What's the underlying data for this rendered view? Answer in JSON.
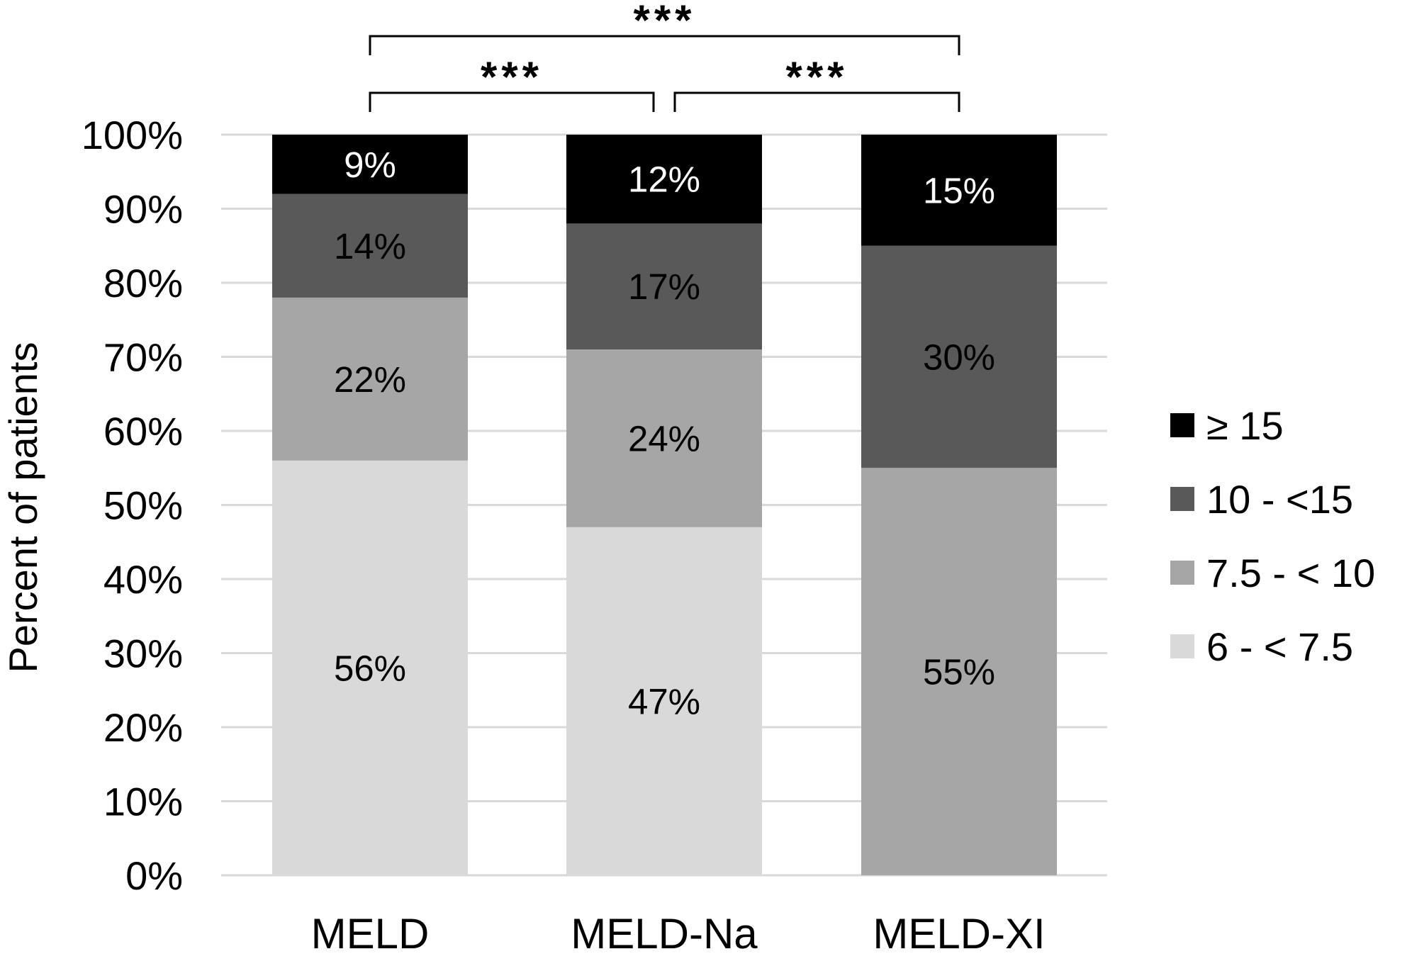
{
  "chart_data": {
    "type": "bar",
    "stacked": true,
    "categories": [
      "MELD",
      "MELD-Na",
      "MELD-XI"
    ],
    "series": [
      {
        "name": "6 - < 7.5",
        "values": [
          56,
          47,
          0
        ],
        "color": "#d9d9d9",
        "label_color": "#000000"
      },
      {
        "name": "7.5 - < 10",
        "values": [
          22,
          24,
          55
        ],
        "color": "#a6a6a6",
        "label_color": "#000000"
      },
      {
        "name": "10 - <15",
        "values": [
          14,
          17,
          30
        ],
        "color": "#595959",
        "label_color": "#000000"
      },
      {
        "name": "≥ 15",
        "values": [
          9,
          12,
          15
        ],
        "color": "#000000",
        "label_color": "#ffffff"
      }
    ],
    "data_labels": [
      [
        "56%",
        "47%",
        ""
      ],
      [
        "22%",
        "24%",
        "55%"
      ],
      [
        "14%",
        "17%",
        "30%"
      ],
      [
        "9%",
        "12%",
        "15%"
      ]
    ],
    "ylabel": "Percent of patients",
    "xlabel": "",
    "ylim": [
      0,
      100
    ],
    "yticks": [
      "0%",
      "10%",
      "20%",
      "30%",
      "40%",
      "50%",
      "60%",
      "70%",
      "80%",
      "90%",
      "100%"
    ],
    "grid": true,
    "legend": {
      "placement": "right",
      "order": [
        "≥ 15",
        "10 - <15",
        "7.5 - < 10",
        "6 - < 7.5"
      ]
    },
    "significance": [
      {
        "from": "MELD",
        "to": "MELD-Na",
        "label": "***",
        "level": 1
      },
      {
        "from": "MELD-Na",
        "to": "MELD-XI",
        "label": "***",
        "level": 1
      },
      {
        "from": "MELD",
        "to": "MELD-XI",
        "label": "***",
        "level": 2
      }
    ]
  }
}
